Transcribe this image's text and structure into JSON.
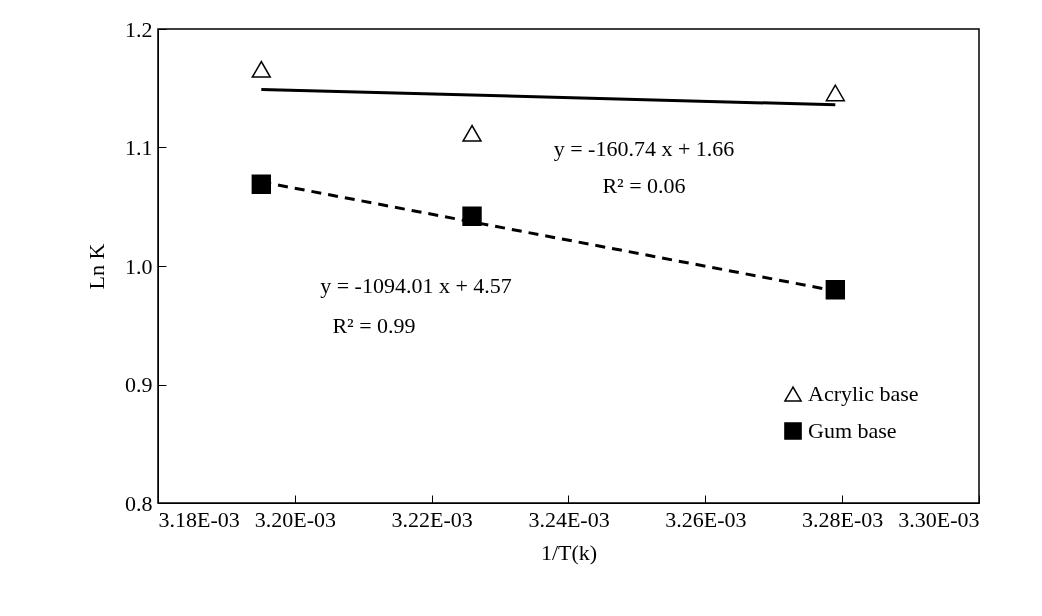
{
  "chart_data": {
    "type": "scatter",
    "xlabel": "1/T(k)",
    "ylabel": "Ln K",
    "xlim": [
      0.00318,
      0.0033
    ],
    "xticks": [
      {
        "value": 0.00318,
        "label": "3.18E-03"
      },
      {
        "value": 0.0032,
        "label": "3.20E-03"
      },
      {
        "value": 0.00322,
        "label": "3.22E-03"
      },
      {
        "value": 0.00324,
        "label": "3.24E-03"
      },
      {
        "value": 0.00326,
        "label": "3.26E-03"
      },
      {
        "value": 0.00328,
        "label": "3.28E-03"
      },
      {
        "value": 0.0033,
        "label": "3.30E-03"
      }
    ],
    "ylim": [
      0.8,
      1.2
    ],
    "yticks": [
      0.8,
      0.9,
      {
        "value": 1,
        "label": "1.0"
      },
      1.1,
      1.2
    ],
    "grid": false,
    "legend": "bottom right",
    "series": [
      {
        "name": "Acrylic base",
        "marker": "triangle",
        "color": "#000000",
        "x": [
          0.0031951,
          0.0032259,
          0.003279
        ],
        "values": [
          1.166,
          1.112,
          1.146
        ]
      },
      {
        "name": "Gum base",
        "marker": "square",
        "color": "#000000",
        "x": [
          0.0031951,
          0.0032259,
          0.003279
        ],
        "values": [
          1.069,
          1.042,
          0.98
        ]
      },
      {
        "type": "line",
        "line_style": "solid",
        "color": "#000000",
        "x": [
          0.0031951,
          0.003279
        ],
        "values": [
          1.149,
          1.136
        ]
      },
      {
        "type": "line",
        "line_style": "dashed",
        "color": "#000000",
        "x": [
          0.0031951,
          0.003279
        ],
        "values": [
          1.071,
          0.979
        ]
      }
    ],
    "annotations": [
      "y = -160.74  x + 1.66",
      "R² = 0.06",
      "y = -1094.01  x + 4.57",
      "R² = 0.99"
    ]
  }
}
